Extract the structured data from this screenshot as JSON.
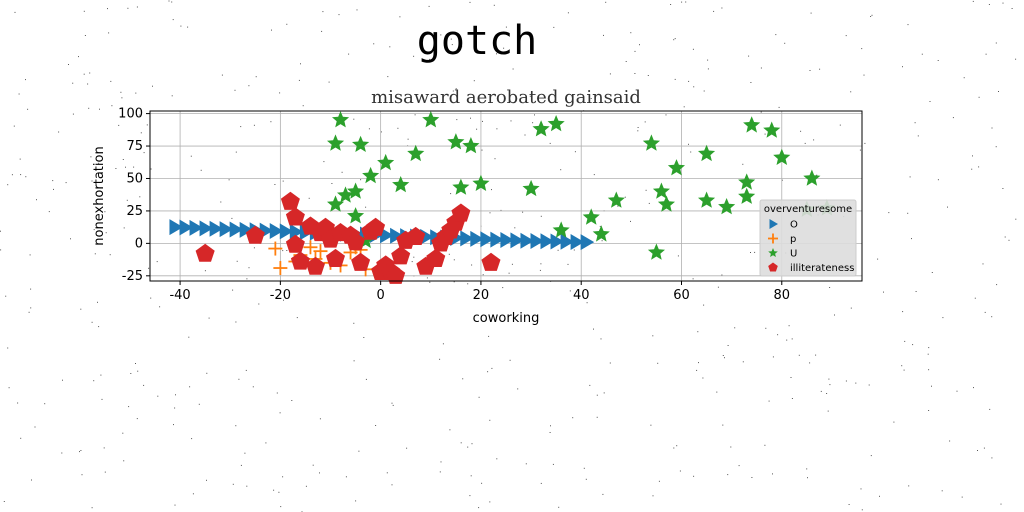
{
  "figure": {
    "suptitle": "gotch"
  },
  "chart_data": {
    "type": "scatter",
    "title": "misaward aerobated gainsaid",
    "xlabel": "coworking",
    "ylabel": "nonexhortation",
    "xlim": [
      -46,
      96
    ],
    "ylim": [
      -29,
      102
    ],
    "xticks": [
      -40,
      -20,
      0,
      20,
      40,
      60,
      80
    ],
    "yticks": [
      -25,
      0,
      25,
      50,
      75,
      100
    ],
    "grid": true,
    "legend": {
      "title": "overventuresome",
      "placement": "lower-right"
    },
    "series": [
      {
        "name": "O",
        "marker": "triangle-right",
        "color": "#1f77b4",
        "x": [
          -41,
          -39,
          -37,
          -35,
          -33,
          -31,
          -29,
          -27,
          -25,
          -23,
          -21,
          -19,
          -17,
          -15,
          -13,
          -11,
          -9,
          -7,
          -5,
          -3,
          -1,
          1,
          3,
          5,
          7,
          9,
          11,
          13,
          15,
          17,
          19,
          21,
          23,
          25,
          27,
          29,
          31,
          33,
          35,
          37,
          39,
          41
        ],
        "y": [
          12.5,
          12.2,
          11.9,
          11.6,
          11.3,
          11,
          10.7,
          10.4,
          10.1,
          9.8,
          9.5,
          9.2,
          8.9,
          8.6,
          8.3,
          8,
          7.7,
          7.4,
          7.1,
          6.8,
          6.5,
          6.2,
          5.9,
          5.6,
          5.3,
          5,
          4.7,
          4.4,
          4.1,
          3.8,
          3.5,
          3.2,
          2.9,
          2.6,
          2.3,
          2,
          1.8,
          1.6,
          1.4,
          1.2,
          1.1,
          1
        ]
      },
      {
        "name": "p",
        "marker": "plus",
        "color": "#ff7f0e",
        "x": [
          -21,
          -20,
          -17,
          -16,
          -14,
          -13,
          -12,
          -10,
          -8,
          -6,
          -5,
          -4,
          -3
        ],
        "y": [
          -4,
          -19,
          -14,
          -9,
          -3,
          -12,
          -6,
          -15,
          -17,
          -7,
          -3,
          -5,
          -20
        ]
      },
      {
        "name": "U",
        "marker": "star",
        "color": "#2ca02c",
        "x": [
          -8,
          -9,
          -5,
          -7,
          -4,
          -2,
          -5,
          -9,
          -3,
          1,
          4,
          7,
          10,
          15,
          16,
          18,
          20,
          30,
          32,
          35,
          36,
          42,
          44,
          47,
          54,
          55,
          56,
          57,
          59,
          65,
          65,
          69,
          73,
          73,
          74,
          78,
          80,
          85,
          86,
          89
        ],
        "y": [
          95,
          77,
          40,
          37,
          76,
          52,
          21,
          30,
          2,
          62,
          45,
          69,
          95,
          78,
          43,
          75,
          46,
          42,
          88,
          92,
          10,
          20,
          7,
          33,
          77,
          -7,
          40,
          30,
          58,
          69,
          33,
          28,
          47,
          36,
          91,
          87,
          66,
          26,
          50,
          27
        ]
      },
      {
        "name": "illiterateness",
        "marker": "pentagon",
        "color": "#d62728",
        "x": [
          -35,
          -25,
          -18,
          -17,
          -17,
          -16,
          -14,
          -13,
          -12,
          -11,
          -10,
          -9,
          -8,
          -6,
          -5,
          -4,
          -2,
          -1,
          0,
          1,
          2,
          4,
          5,
          7,
          9,
          11,
          12,
          13,
          14,
          15,
          16,
          22,
          3
        ],
        "y": [
          -8,
          6,
          32,
          20,
          -1,
          -14,
          13,
          -18,
          8,
          12,
          3,
          -12,
          8,
          6,
          1,
          -15,
          9,
          12,
          -22,
          -17,
          -22,
          -10,
          2,
          5,
          -18,
          -12,
          0,
          5,
          10,
          16,
          23,
          -15,
          -25
        ]
      }
    ]
  }
}
